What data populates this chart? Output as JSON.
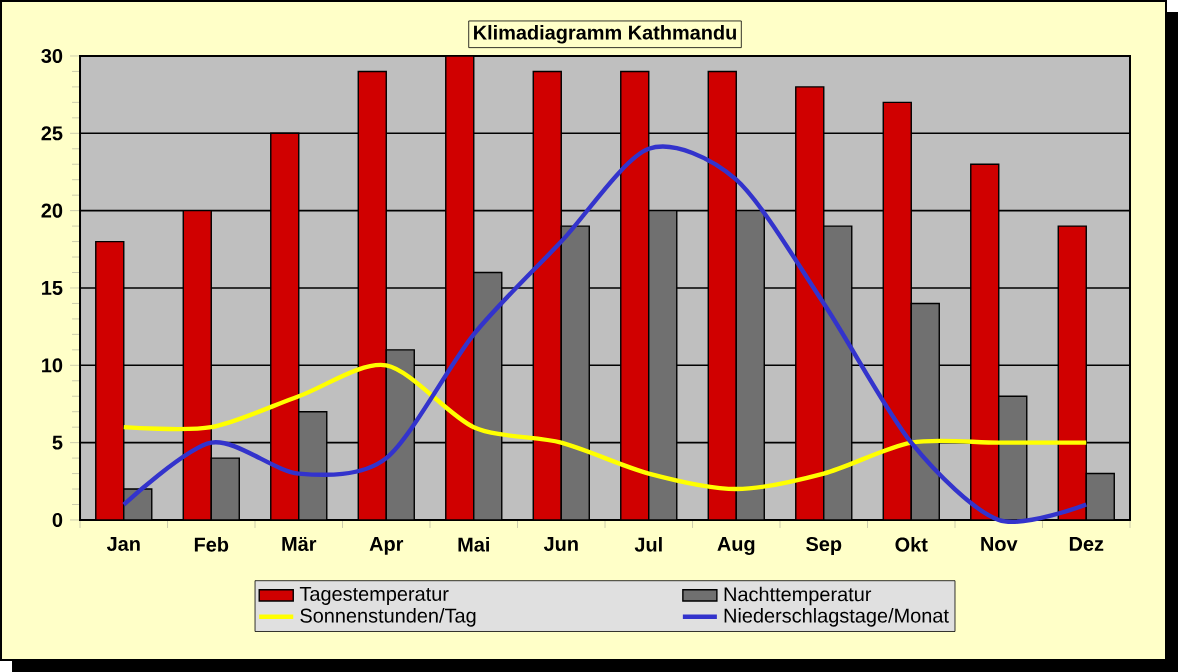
{
  "chart_data": {
    "type": "bar",
    "title": "Klimadiagramm Kathmandu",
    "categories": [
      "Jan",
      "Feb",
      "Mär",
      "Apr",
      "Mai",
      "Jun",
      "Jul",
      "Aug",
      "Sep",
      "Okt",
      "Nov",
      "Dez"
    ],
    "series": [
      {
        "name": "Tagestemperatur",
        "color": "#d00000",
        "values": [
          18,
          20,
          25,
          29,
          30,
          29,
          29,
          29,
          28,
          27,
          23,
          19
        ]
      },
      {
        "name": "Nachttemperatur",
        "color": "#707070",
        "values": [
          2,
          4,
          7,
          11,
          16,
          19,
          20,
          20,
          19,
          14,
          8,
          3
        ]
      },
      {
        "name": "Sonnenstunden/Tag",
        "type": "line",
        "color": "#ffff00",
        "values": [
          6,
          6,
          8,
          10,
          6,
          5,
          3,
          2,
          3,
          5,
          5,
          5
        ]
      },
      {
        "name": "Niederschlagstage/Monat",
        "type": "line",
        "color": "#3333cc",
        "values": [
          1,
          5,
          3,
          4,
          12,
          18,
          24,
          22,
          14,
          5,
          0,
          1
        ]
      }
    ],
    "ylim": [
      0,
      30
    ],
    "yticks": [
      0,
      5,
      10,
      15,
      20,
      25,
      30
    ],
    "grid": "y",
    "legend": "bottom",
    "marker": "none"
  }
}
